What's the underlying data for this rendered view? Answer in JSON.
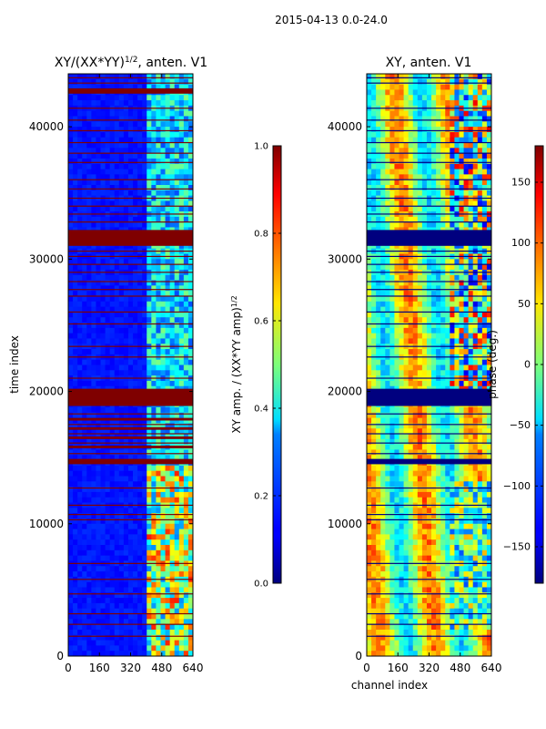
{
  "suptitle": "2015-04-13 0.0-24.0",
  "chart_data": [
    {
      "type": "heatmap",
      "title": "XY/(XX*YY)",
      "title_exponent": "1/2",
      "title_suffix": ", anten. V1",
      "xlabel": "",
      "ylabel": "time index",
      "xlim": [
        0,
        640
      ],
      "ylim": [
        0,
        44000
      ],
      "xticks": [
        0,
        160,
        320,
        480,
        640
      ],
      "yticks": [
        0,
        10000,
        20000,
        30000,
        40000
      ],
      "colormap": "jet",
      "colorbar": {
        "label": "XY amp. / (XX*YY amp)",
        "label_exponent": "1/2",
        "range": [
          0.0,
          1.0
        ],
        "ticks": [
          "0.0",
          "0.2",
          "0.4",
          "0.6",
          "0.8",
          "1.0"
        ]
      },
      "features": {
        "background_value": 0.12,
        "high_channel_band_start": 400,
        "saturated_time_bands": [
          [
            31000,
            32200
          ],
          [
            18900,
            20200
          ],
          [
            14500,
            14900
          ],
          [
            15700,
            15900
          ],
          [
            16400,
            16600
          ],
          [
            17100,
            17300
          ],
          [
            17800,
            18000
          ],
          [
            42500,
            42900
          ]
        ],
        "flagged_rows": [
          1500,
          2400,
          3200,
          4700,
          5800,
          7000,
          10300,
          10700,
          11400,
          12700,
          15300,
          16100,
          16800,
          17500,
          18300,
          21000,
          22600,
          23400,
          25100,
          26000,
          27200,
          27700,
          28300,
          29000,
          29600,
          30200,
          30600,
          32800,
          33400,
          34000,
          34600,
          35300,
          36000,
          37300,
          38000,
          38800,
          39700,
          40500,
          41400,
          43300,
          43700
        ]
      }
    },
    {
      "type": "heatmap",
      "title": "XY, anten. V1",
      "xlabel": "channel index",
      "ylabel": "",
      "xlim": [
        0,
        640
      ],
      "ylim": [
        0,
        44000
      ],
      "xticks": [
        0,
        160,
        320,
        480,
        640
      ],
      "yticks": [
        0,
        10000,
        20000,
        30000,
        40000
      ],
      "colormap": "jet",
      "colorbar": {
        "label": "phase (deg.)",
        "range": [
          -180,
          180
        ],
        "ticks": [
          "150",
          "100",
          "50",
          "0",
          "−50",
          "−100",
          "−150"
        ]
      },
      "features": {
        "background_phase": 20,
        "blank_time_bands": [
          [
            31000,
            32200
          ],
          [
            18900,
            20200
          ],
          [
            14500,
            14900
          ]
        ],
        "flagged_rows": [
          1500,
          2400,
          3200,
          4700,
          5800,
          7000,
          10300,
          10700,
          11400,
          12700,
          15300,
          16100,
          16800,
          17500,
          18300,
          21000,
          22600,
          23400,
          25100,
          26000,
          27200,
          27700,
          28300,
          29000,
          29600,
          30200,
          30600,
          32800,
          33400,
          34000,
          34600,
          35300,
          36000,
          37300,
          38000,
          38800,
          39700,
          40500,
          41400,
          43300,
          43700
        ]
      }
    }
  ]
}
